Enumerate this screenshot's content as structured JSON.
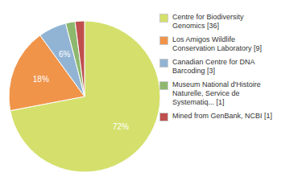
{
  "chart_data": {
    "type": "pie",
    "categories": [
      "Centre for Biodiversity\nGenomics [36]",
      "Los Amigos Wildlife\nConservation Laboratory [9]",
      "Canadian Centre for DNA\nBarcoding [3]",
      "Museum National d'Histoire\nNaturelle, Service de\nSystematiq... [1]",
      "Mined from GenBank, NCBI [1]"
    ],
    "values": [
      72,
      18,
      6,
      2,
      2
    ],
    "value_labels": [
      "72%",
      "18%",
      "6%",
      null,
      null
    ],
    "colors": [
      "#d4e06b",
      "#f0944a",
      "#92b4d4",
      "#8db86e",
      "#c0504d"
    ],
    "data_labels": true,
    "legend": "right"
  }
}
